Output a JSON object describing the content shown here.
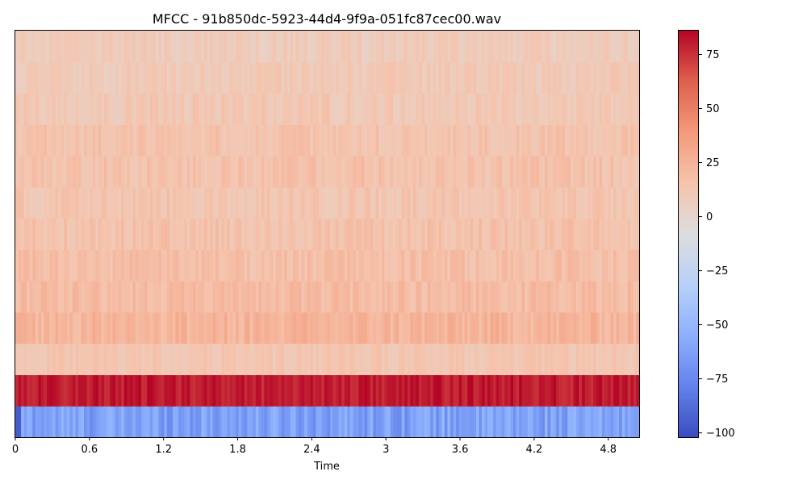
{
  "chart_data": {
    "type": "heatmap",
    "title": "MFCC - 91b850dc-5923-44d4-9f9a-051fc87cec00.wav",
    "xlabel": "Time",
    "ylabel": "",
    "xlim": [
      0,
      5.05
    ],
    "x_ticks": [
      "0",
      "0.6",
      "1.2",
      "1.8",
      "2.4",
      "3",
      "3.6",
      "4.2",
      "4.8"
    ],
    "x_tick_values": [
      0,
      0.6,
      1.2,
      1.8,
      2.4,
      3.0,
      3.6,
      4.2,
      4.8
    ],
    "n_coefficients": 13,
    "n_frames": 218,
    "coefficient_rows_bottom_to_top": [
      {
        "coef": 0,
        "mean": -62,
        "spread": 12
      },
      {
        "coef": 1,
        "mean": 80,
        "spread": 6
      },
      {
        "coef": 2,
        "mean": 13,
        "spread": 5
      },
      {
        "coef": 3,
        "mean": 24,
        "spread": 7
      },
      {
        "coef": 4,
        "mean": 20,
        "spread": 6
      },
      {
        "coef": 5,
        "mean": 18,
        "spread": 6
      },
      {
        "coef": 6,
        "mean": 16,
        "spread": 6
      },
      {
        "coef": 7,
        "mean": 14,
        "spread": 6
      },
      {
        "coef": 8,
        "mean": 16,
        "spread": 6
      },
      {
        "coef": 9,
        "mean": 15,
        "spread": 6
      },
      {
        "coef": 10,
        "mean": 12,
        "spread": 6
      },
      {
        "coef": 11,
        "mean": 11,
        "spread": 6
      },
      {
        "coef": 12,
        "mean": 9,
        "spread": 6
      }
    ],
    "colorbar": {
      "colormap": "coolwarm",
      "range": [
        -102,
        86
      ],
      "ticks": [
        75,
        50,
        25,
        0,
        -25,
        -50,
        -75,
        -100
      ],
      "tick_labels": [
        "75",
        "50",
        "25",
        "0",
        "−25",
        "−50",
        "−75",
        "−100"
      ]
    },
    "grid": false
  }
}
